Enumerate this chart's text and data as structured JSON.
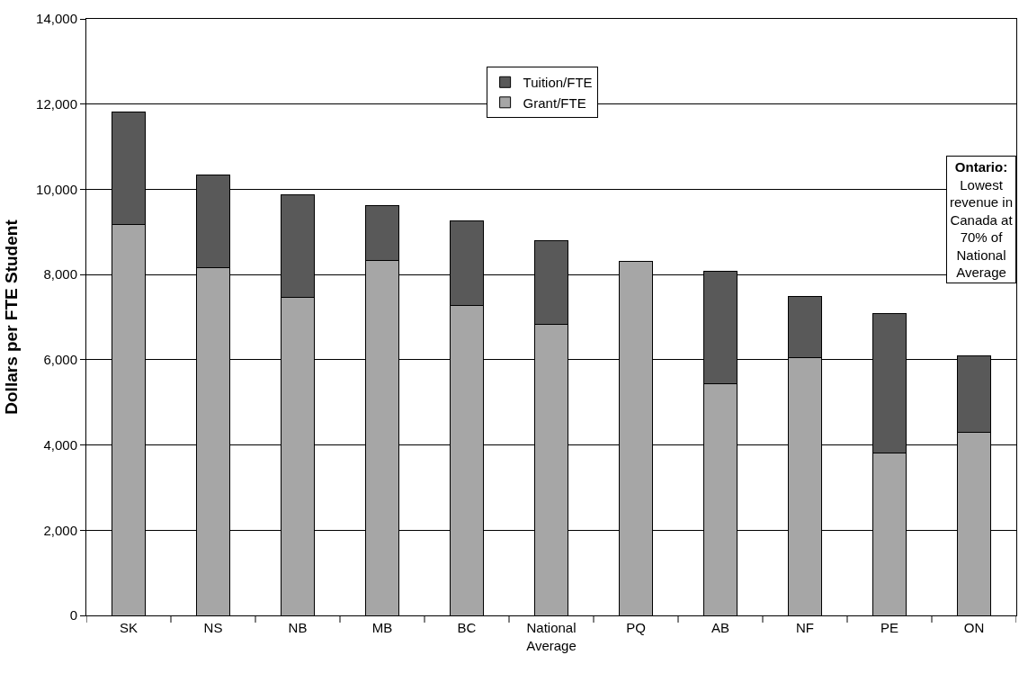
{
  "chart_data": {
    "type": "bar",
    "stacked": true,
    "ylabel": "Dollars per FTE Student",
    "categories": [
      "SK",
      "NS",
      "NB",
      "MB",
      "BC",
      "National Average",
      "PQ",
      "AB",
      "NF",
      "PE",
      "ON"
    ],
    "series": [
      {
        "name": "Grant/FTE",
        "color": "#a6a6a6",
        "values": [
          9170,
          8160,
          7460,
          8320,
          7270,
          6830,
          8300,
          5430,
          6060,
          3820,
          4300
        ]
      },
      {
        "name": "Tuition/FTE",
        "color": "#595959",
        "values": [
          2650,
          2170,
          2410,
          1300,
          1990,
          1960,
          null,
          2650,
          1430,
          3270,
          1790
        ]
      }
    ],
    "ylim": [
      0,
      14000
    ],
    "yticks": [
      {
        "value": 0,
        "label": "0"
      },
      {
        "value": 2000,
        "label": "2,000"
      },
      {
        "value": 4000,
        "label": "4,000"
      },
      {
        "value": 6000,
        "label": "6,000"
      },
      {
        "value": 8000,
        "label": "8,000"
      },
      {
        "value": 10000,
        "label": "10,000"
      },
      {
        "value": 12000,
        "label": "12,000"
      },
      {
        "value": 14000,
        "label": "14,000"
      }
    ],
    "grid": "y",
    "legend": "top",
    "annotations": [
      "Ontario: Lowest revenue in Canada at 70% of National Average"
    ]
  }
}
